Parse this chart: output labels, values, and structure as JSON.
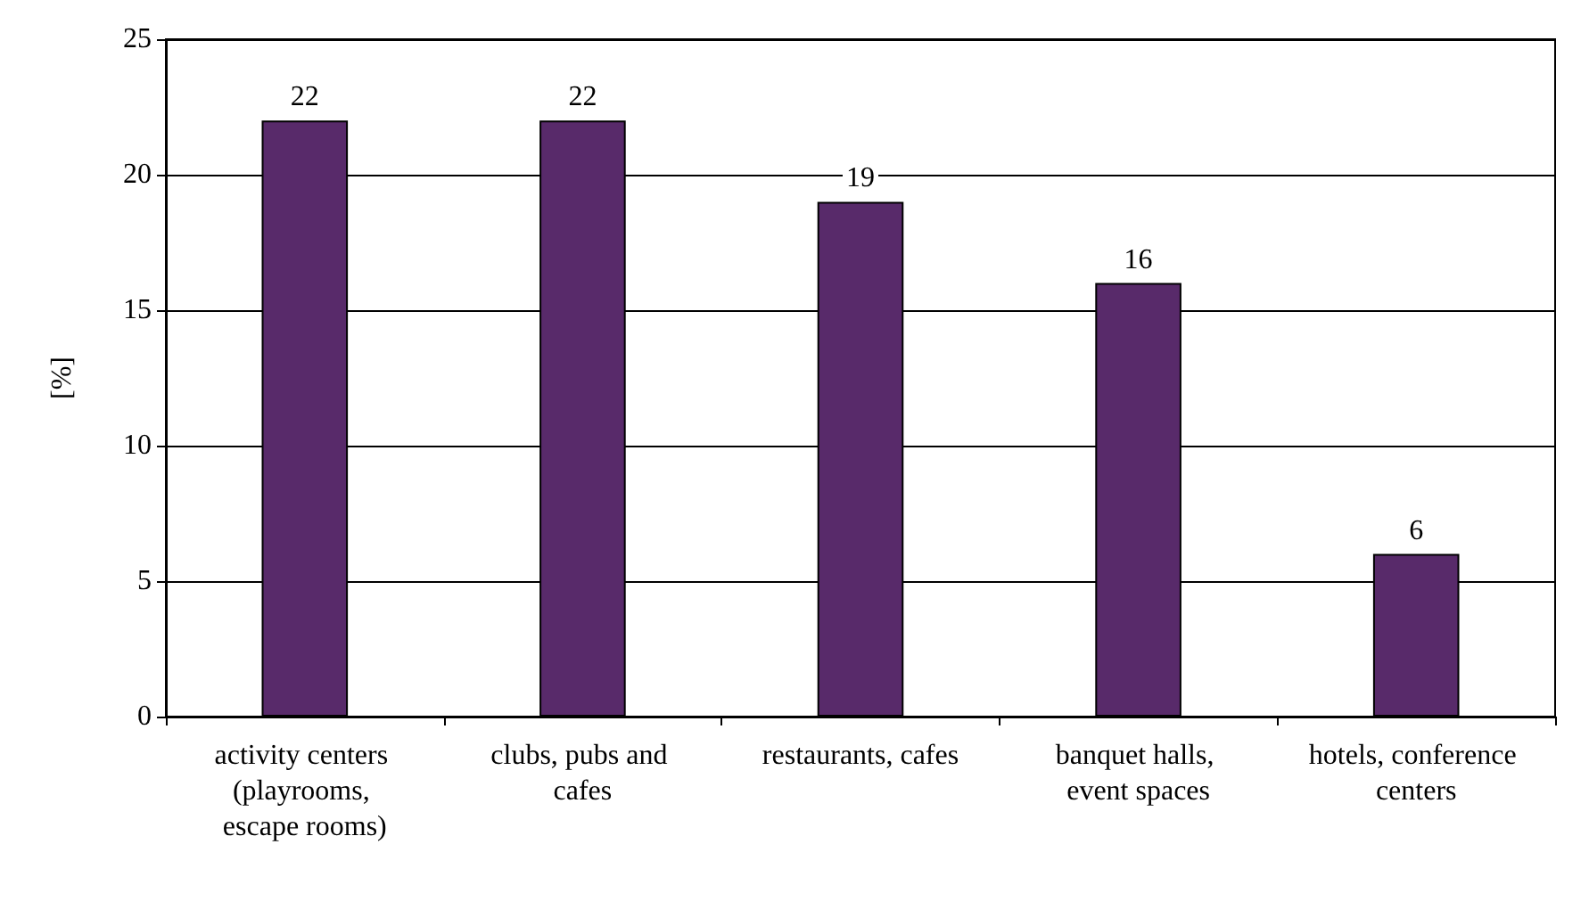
{
  "chart_data": {
    "type": "bar",
    "ylabel": "[%]",
    "categories": [
      "activity centers (playrooms, escape rooms)",
      "clubs, pubs and cafes",
      "restaurants, cafes",
      "banquet halls, event spaces",
      "hotels, conference centers"
    ],
    "values": [
      22,
      22,
      19,
      16,
      6
    ],
    "color": "#582a6a",
    "ylim": [
      0,
      25
    ],
    "yticks": [
      0,
      5,
      10,
      15,
      20,
      25
    ],
    "grid": "y",
    "data_labels": true
  }
}
